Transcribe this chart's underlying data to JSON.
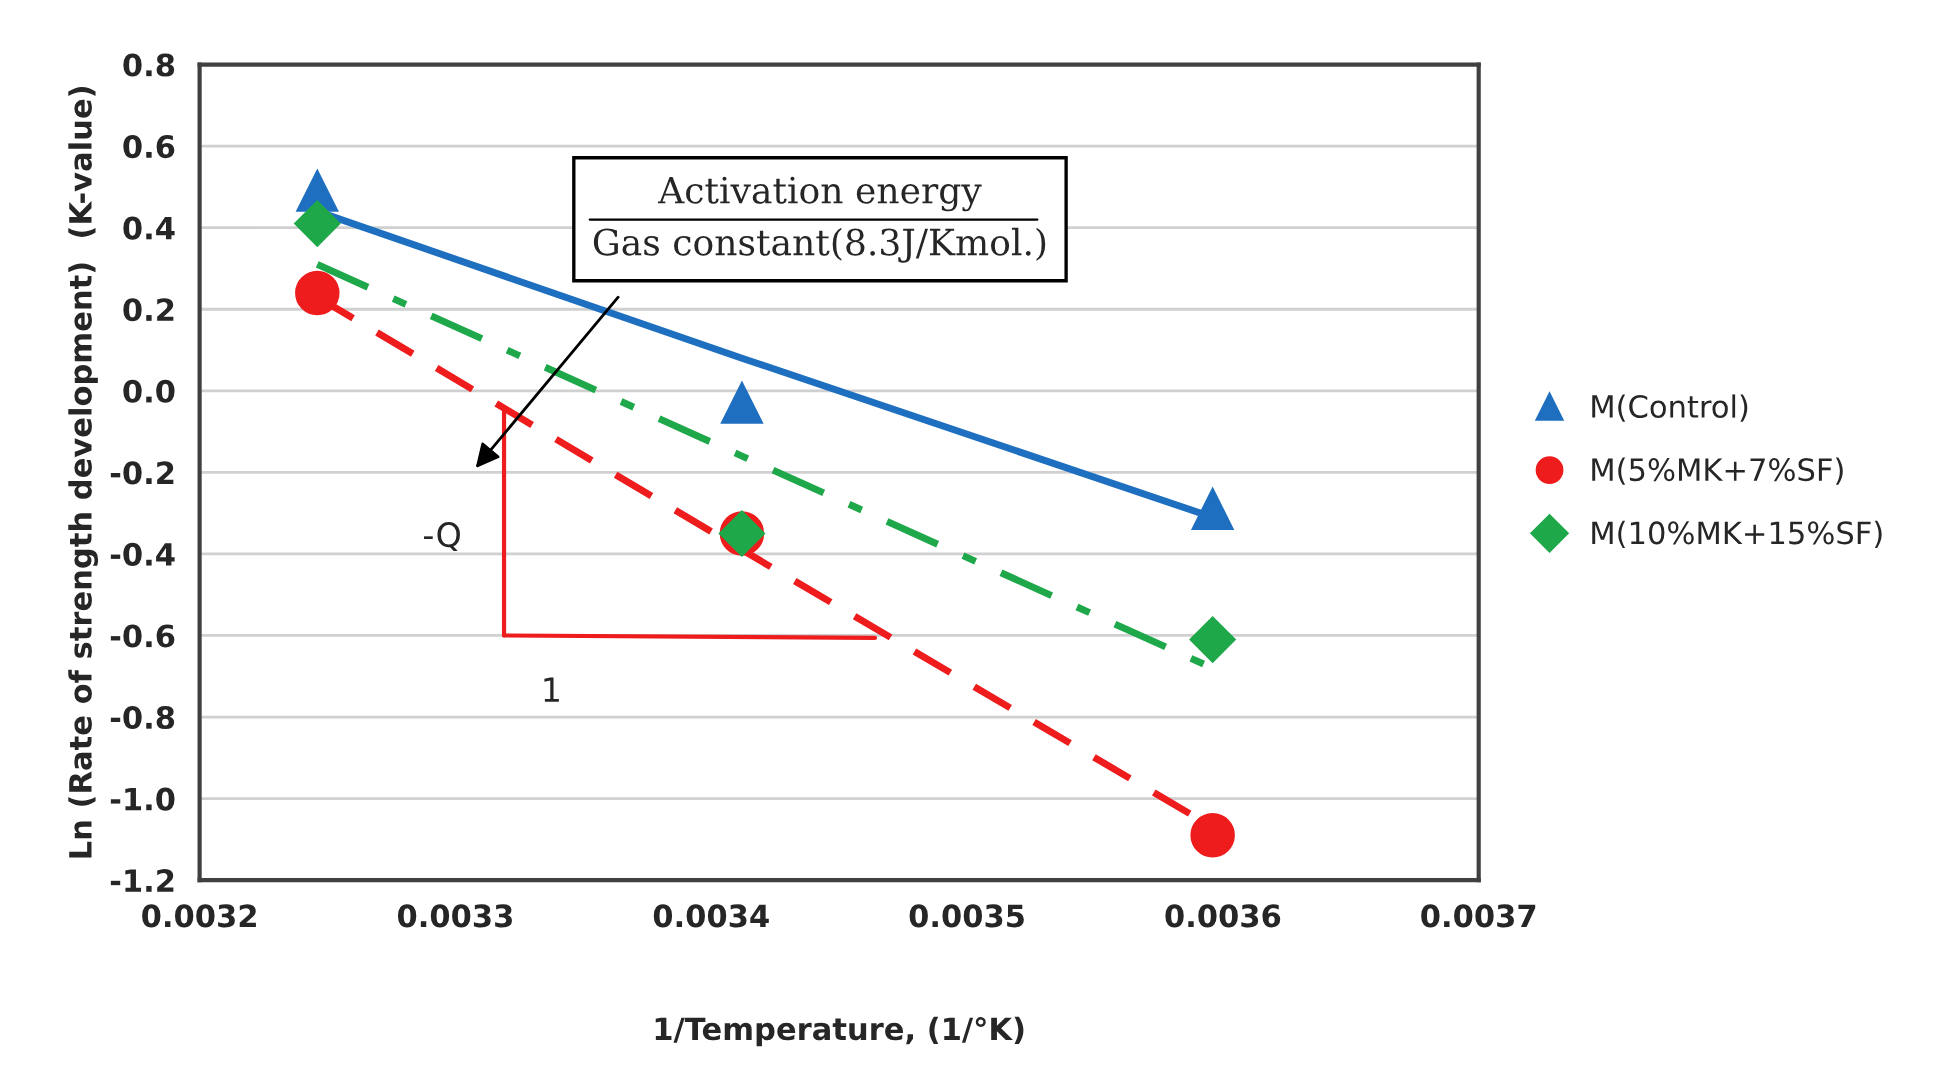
{
  "chart_data": {
    "type": "scatter",
    "xlabel": "1/Temperature, (1/°K)",
    "ylabel": "Ln (Rate of strength development)  (K-value)",
    "x": [
      0.003246,
      0.003412,
      0.003596
    ],
    "series": [
      {
        "name": "M(Control)",
        "color": "#1f6fc0",
        "marker": "triangle",
        "values": [
          0.49,
          -0.03,
          -0.29
        ]
      },
      {
        "name": "M(5%MK+7%SF)",
        "color": "#ee1c1c",
        "marker": "circle",
        "values": [
          0.24,
          -0.35,
          -1.09
        ]
      },
      {
        "name": "M(10%MK+15%SF)",
        "color": "#1ea84a",
        "marker": "diamond",
        "values": [
          0.41,
          -0.35,
          -0.61
        ]
      },
      {
        "type": "line",
        "color": "#1f6fc0",
        "line_style": "solid",
        "values": [
          0.44,
          0.08,
          -0.31
        ]
      },
      {
        "type": "line",
        "color": "#ee1c1c",
        "line_style": "dashed",
        "values": [
          0.23,
          -0.39,
          -1.07
        ]
      },
      {
        "type": "line",
        "color": "#1ea84a",
        "line_style": "dashdot",
        "values": [
          0.31,
          -0.16,
          -0.68
        ]
      }
    ],
    "xlim": [
      0.0032,
      0.0037
    ],
    "xticks": [
      0.0032,
      0.0033,
      0.0034,
      0.0035,
      0.0036,
      0.0037
    ],
    "ylim": [
      -1.2,
      0.8
    ],
    "yticks": [
      -1.2,
      {
        "value": -1.0,
        "label": "-1.0"
      },
      -0.8,
      -0.6,
      -0.4,
      -0.2,
      {
        "value": 0,
        "label": "0.0"
      },
      0.2,
      0.4,
      0.6,
      0.8
    ],
    "grid": "y",
    "legend": "right",
    "annotations": [
      "Activation energy\nGas constant(8.3J/Kmol.)",
      "-Q",
      "1"
    ]
  }
}
